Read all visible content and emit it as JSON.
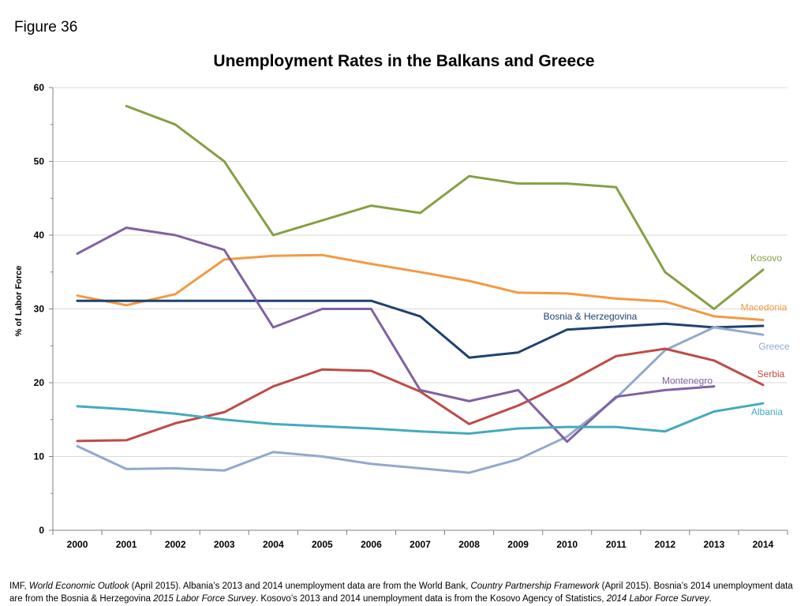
{
  "figure_label": "Figure 36",
  "chart_data": {
    "type": "line",
    "title": "Unemployment Rates in the Balkans and Greece",
    "xlabel": "",
    "ylabel": "% of Labor Force",
    "x": [
      2000,
      2001,
      2002,
      2003,
      2004,
      2005,
      2006,
      2007,
      2008,
      2009,
      2010,
      2011,
      2012,
      2013,
      2014
    ],
    "ylim": [
      0,
      60
    ],
    "yticks": [
      0,
      10,
      20,
      30,
      40,
      50,
      60
    ],
    "grid": true,
    "legend": "inline labels at line ends",
    "series": [
      {
        "name": "Kosovo",
        "color": "#86A044",
        "values": [
          null,
          57.5,
          55.0,
          50.0,
          40.0,
          42.0,
          44.0,
          43.0,
          48.0,
          47.0,
          47.0,
          46.5,
          35.0,
          30.0,
          35.3
        ]
      },
      {
        "name": "Macedonia",
        "color": "#F29A43",
        "values": [
          31.8,
          30.5,
          32.0,
          36.7,
          37.2,
          37.3,
          36.1,
          35.0,
          33.8,
          32.2,
          32.1,
          31.4,
          31.0,
          29.0,
          28.5
        ]
      },
      {
        "name": "Bosnia & Herzegovina",
        "color": "#1F426E",
        "values": [
          31.1,
          31.1,
          31.1,
          31.1,
          31.1,
          31.1,
          31.1,
          29.0,
          23.4,
          24.1,
          27.2,
          27.6,
          28.0,
          27.5,
          27.7
        ]
      },
      {
        "name": "Greece",
        "color": "#92A9CC",
        "values": [
          11.4,
          8.3,
          8.4,
          8.1,
          10.6,
          10.0,
          9.0,
          8.4,
          7.8,
          9.6,
          12.7,
          17.9,
          24.4,
          27.5,
          26.5
        ]
      },
      {
        "name": "Serbia",
        "color": "#BE4B48",
        "values": [
          12.1,
          12.2,
          14.5,
          16.0,
          19.5,
          21.8,
          21.6,
          18.8,
          14.4,
          16.9,
          20.0,
          23.6,
          24.6,
          23.0,
          19.7
        ]
      },
      {
        "name": "Montenegro",
        "color": "#8062A0",
        "values": [
          37.5,
          41.0,
          40.0,
          38.0,
          27.5,
          30.0,
          30.0,
          19.0,
          17.5,
          19.0,
          12.0,
          18.1,
          19.0,
          19.5,
          null
        ]
      },
      {
        "name": "Albania",
        "color": "#45AABD",
        "values": [
          16.8,
          16.4,
          15.8,
          15.0,
          14.4,
          14.1,
          13.8,
          13.4,
          13.1,
          13.8,
          14.0,
          14.0,
          13.4,
          16.1,
          17.2
        ]
      }
    ]
  },
  "source_note": {
    "p1": "IMF, ",
    "i1": "World Economic Outlook",
    "p2": " (April 2015).  Albania’s 2013 and 2014 unemployment data are from the World Bank, ",
    "i2": "Country Partnership Framework",
    "p3": " (April 2015).  Bosnia’s 2014 unemployment data are from the Bosnia & Herzegovina ",
    "i3": "2015 Labor Force Survey",
    "p4": ".  Kosovo’s 2013 and 2014 unemployment data is from the Kosovo Agency of Statistics, ",
    "i4": "2014 Labor Force Survey",
    "p5": "."
  }
}
